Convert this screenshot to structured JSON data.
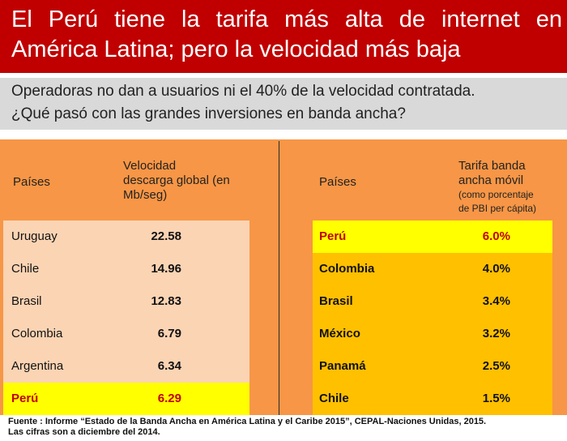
{
  "title": {
    "line1": "El Perú tiene la  tarifa más alta de internet en",
    "line2": "América Latina; pero la velocidad más baja"
  },
  "subtitle": {
    "line1": "Operadoras no dan a usuarios ni el 40% de la velocidad contratada.",
    "line2": "¿Qué pasó con las grandes inversiones en banda ancha?"
  },
  "left_table": {
    "col1_header": "Países",
    "col2_header_line1": "Velocidad",
    "col2_header_line2": "descarga global (en",
    "col2_header_line3": "Mb/seg)",
    "rows": [
      {
        "country": "Uruguay",
        "value": "22.58"
      },
      {
        "country": "Chile",
        "value": "14.96"
      },
      {
        "country": "Brasil",
        "value": "12.83"
      },
      {
        "country": "Colombia",
        "value": "6.79"
      },
      {
        "country": "Argentina",
        "value": "6.34"
      },
      {
        "country": "Perú",
        "value": "6.29"
      }
    ]
  },
  "right_table": {
    "col1_header": "Países",
    "col2_header_line1": "Tarifa banda",
    "col2_header_line2": "ancha móvil",
    "col2_header_line3": "(como porcentaje",
    "col2_header_line4": "de PBI per cápita)",
    "rows": [
      {
        "country": "Perú",
        "value": "6.0%"
      },
      {
        "country": "Colombia",
        "value": "4.0%"
      },
      {
        "country": "Brasil",
        "value": "3.4%"
      },
      {
        "country": "México",
        "value": "3.2%"
      },
      {
        "country": "Panamá",
        "value": "2.5%"
      },
      {
        "country": "Chile",
        "value": "1.5%"
      }
    ]
  },
  "source": {
    "line1": "Fuente : Informe “Estado de la Banda Ancha en América Latina y el Caribe 2015”, CEPAL-Naciones Unidas, 2015.",
    "line2": "Las cifras son a diciembre del 2014."
  },
  "colors": {
    "title_bg": "#c00000",
    "subtitle_bg": "#d9d9d9",
    "panel_bg": "#f79646",
    "left_row_bg": "#fbd4b4",
    "right_row_bg": "#ffc000",
    "highlight_bg": "#ffff00",
    "highlight_text": "#c00000"
  }
}
